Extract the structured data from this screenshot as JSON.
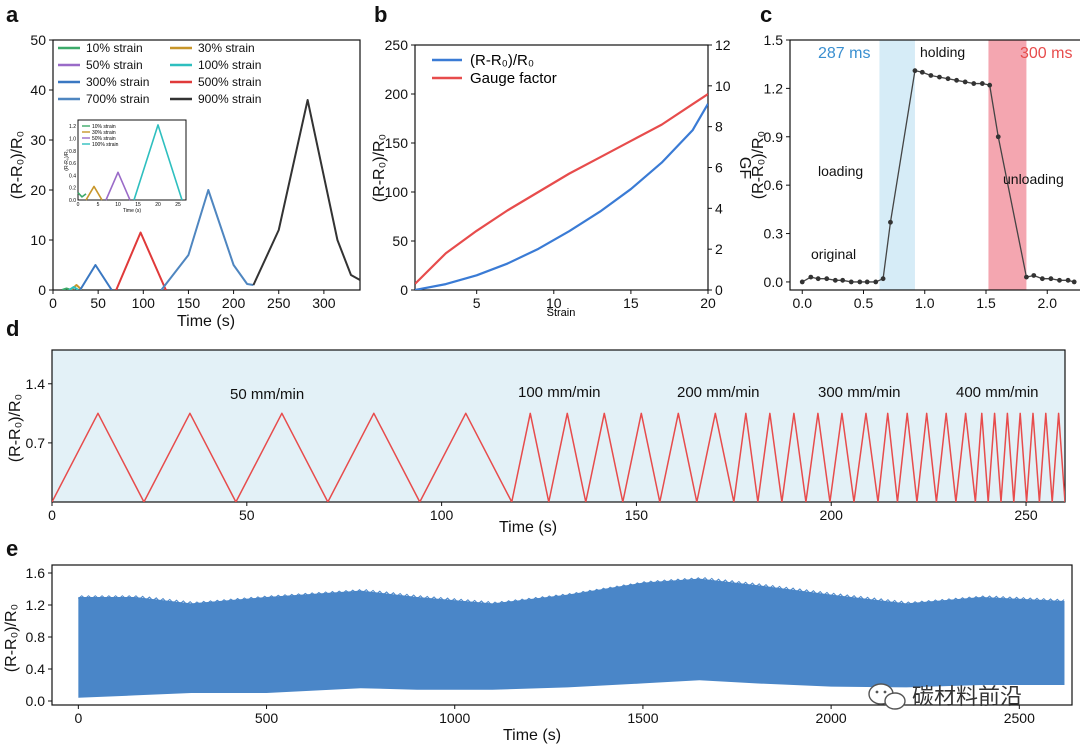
{
  "panel_labels": [
    "a",
    "b",
    "c",
    "d",
    "e"
  ],
  "watermark": "碳材料前沿",
  "colors": {
    "strain10": "#3daa6a",
    "strain30": "#c8962a",
    "strain50": "#9a6bc8",
    "strain100": "#2ebfbf",
    "strain300": "#3a78c2",
    "strain500": "#e03a3a",
    "strain700": "#4f86c0",
    "strain900": "#333333",
    "blue": "#3a7bd5",
    "red": "#e74c4c",
    "shade_blue": "#d6ecf7",
    "shade_red": "#f4a6b0",
    "shade_d": "#e3f1f7",
    "fill_e": "#4a86c8"
  },
  "chart_data": [
    {
      "id": "a",
      "type": "line",
      "xlabel": "Time (s)",
      "ylabel": "(R-R₀)/R₀",
      "xlim": [
        0,
        340
      ],
      "ylim": [
        0,
        50
      ],
      "xticks": [
        0,
        50,
        100,
        150,
        200,
        250,
        300
      ],
      "yticks": [
        0,
        10,
        20,
        30,
        40,
        50
      ],
      "legend": [
        "10% strain",
        "30% strain",
        "50% strain",
        "100% strain",
        "300% strain",
        "500% strain",
        "700% strain",
        "900% strain"
      ],
      "series": [
        {
          "name": "10% strain",
          "x": [
            10,
            15,
            20
          ],
          "y": [
            0,
            0.3,
            0
          ]
        },
        {
          "name": "30% strain",
          "x": [
            20,
            26,
            32
          ],
          "y": [
            0,
            1,
            0
          ]
        },
        {
          "name": "100% strain",
          "x": [
            18,
            23,
            28
          ],
          "y": [
            0,
            0.6,
            0
          ]
        },
        {
          "name": "300% strain",
          "x": [
            30,
            47,
            65
          ],
          "y": [
            0,
            5,
            0
          ]
        },
        {
          "name": "500% strain",
          "x": [
            70,
            97,
            125
          ],
          "y": [
            0,
            11.5,
            0
          ]
        },
        {
          "name": "700% strain",
          "x": [
            120,
            150,
            172,
            200,
            215,
            222
          ],
          "y": [
            0,
            7,
            20,
            5,
            1.2,
            1
          ]
        },
        {
          "name": "900% strain",
          "x": [
            222,
            250,
            282,
            315,
            330,
            340
          ],
          "y": [
            1,
            12,
            38,
            10,
            3,
            2
          ]
        }
      ],
      "inset": {
        "xlabel": "Time (s)",
        "ylabel": "(R-R₀)/R₀",
        "xlim": [
          0,
          27
        ],
        "ylim": [
          0,
          1.3
        ],
        "xticks": [
          0,
          5,
          10,
          15,
          20,
          25
        ],
        "yticks": [
          0.0,
          0.2,
          0.4,
          0.6,
          0.8,
          1.0,
          1.2
        ],
        "legend": [
          "10% strain",
          "30% strain",
          "50% strain",
          "100% strain"
        ],
        "series": [
          {
            "name": "10% strain",
            "x": [
              0,
              1,
              2
            ],
            "y": [
              0.12,
              0.05,
              0.1
            ]
          },
          {
            "name": "30% strain",
            "x": [
              2,
              4,
              6
            ],
            "y": [
              0,
              0.22,
              0
            ]
          },
          {
            "name": "50% strain",
            "x": [
              7,
              10,
              13
            ],
            "y": [
              0,
              0.45,
              0
            ]
          },
          {
            "name": "100% strain",
            "x": [
              14,
              20,
              26
            ],
            "y": [
              0,
              1.22,
              0
            ]
          }
        ]
      }
    },
    {
      "id": "b",
      "type": "line",
      "xlabel": "Strain",
      "ylabel": "(R-R₀)/R₀",
      "y2label": "GF",
      "xlim": [
        1,
        20
      ],
      "ylim": [
        0,
        250
      ],
      "y2lim": [
        0,
        12
      ],
      "xticks": [
        5,
        10,
        15,
        20
      ],
      "yticks": [
        0,
        50,
        100,
        150,
        200,
        250
      ],
      "y2ticks": [
        0,
        2,
        4,
        6,
        8,
        10,
        12
      ],
      "legend": [
        "(R-R₀)/R₀",
        "Gauge factor"
      ],
      "series": [
        {
          "name": "(R-R₀)/R₀",
          "x": [
            1,
            3,
            5,
            7,
            9,
            11,
            13,
            15,
            17,
            19,
            20
          ],
          "y": [
            0,
            6,
            15,
            27,
            42,
            60,
            80,
            103,
            130,
            163,
            190
          ]
        },
        {
          "name": "Gauge factor",
          "x": [
            1,
            3,
            5,
            7,
            9,
            11,
            13,
            15,
            17,
            19,
            20
          ],
          "y": [
            0.3,
            1.8,
            2.9,
            3.9,
            4.8,
            5.7,
            6.5,
            7.3,
            8.1,
            9.1,
            9.6
          ]
        }
      ]
    },
    {
      "id": "c",
      "type": "line",
      "xlabel": "",
      "ylabel": "(R-R₀)/R₀",
      "xlim": [
        -0.1,
        2.3
      ],
      "ylim": [
        -0.05,
        1.5
      ],
      "xticks": [
        0.0,
        0.5,
        1.0,
        1.5,
        2.0
      ],
      "yticks": [
        0.0,
        0.3,
        0.6,
        0.9,
        1.2,
        1.5
      ],
      "shaded": [
        {
          "label": "287 ms",
          "range": [
            0.63,
            0.92
          ],
          "color": "blue"
        },
        {
          "label": "300 ms",
          "range": [
            1.52,
            1.83
          ],
          "color": "red"
        }
      ],
      "annotations": [
        "original",
        "loading",
        "holding",
        "unloading"
      ],
      "series": [
        {
          "name": "response",
          "x": [
            0.0,
            0.07,
            0.13,
            0.2,
            0.27,
            0.33,
            0.4,
            0.47,
            0.53,
            0.6,
            0.66,
            0.72,
            0.92,
            0.98,
            1.05,
            1.12,
            1.19,
            1.26,
            1.33,
            1.4,
            1.47,
            1.53,
            1.6,
            1.83,
            1.89,
            1.96,
            2.03,
            2.1,
            2.17,
            2.22
          ],
          "y": [
            0.0,
            0.03,
            0.02,
            0.02,
            0.01,
            0.01,
            0.0,
            0.0,
            0.0,
            0.0,
            0.02,
            0.37,
            1.31,
            1.3,
            1.28,
            1.27,
            1.26,
            1.25,
            1.24,
            1.23,
            1.23,
            1.22,
            0.9,
            0.03,
            0.04,
            0.02,
            0.02,
            0.01,
            0.01,
            0.0
          ]
        }
      ]
    },
    {
      "id": "d",
      "type": "line",
      "xlabel": "Time (s)",
      "ylabel": "(R-R₀)/R₀",
      "xlim": [
        0,
        260
      ],
      "ylim": [
        0,
        1.8
      ],
      "xticks": [
        0,
        50,
        100,
        150,
        200,
        250
      ],
      "yticks": [
        0.7,
        1.4
      ],
      "annotations": [
        "50 mm/min",
        "100 mm/min",
        "200 mm/min",
        "300 mm/min",
        "400 mm/min"
      ],
      "segments": [
        {
          "speed": "50 mm/min",
          "t_start": 0,
          "t_end": 118,
          "cycles": 5,
          "peak": 1.05
        },
        {
          "speed": "100 mm/min",
          "t_start": 118,
          "t_end": 175,
          "cycles": 6,
          "peak": 1.05
        },
        {
          "speed": "200 mm/min",
          "t_start": 175,
          "t_end": 212,
          "cycles": 6,
          "peak": 1.05
        },
        {
          "speed": "300 mm/min",
          "t_start": 212,
          "t_end": 237,
          "cycles": 5,
          "peak": 1.05
        },
        {
          "speed": "400 mm/min",
          "t_start": 237,
          "t_end": 260,
          "cycles": 7,
          "peak": 1.05
        }
      ]
    },
    {
      "id": "e",
      "type": "area",
      "xlabel": "Time (s)",
      "ylabel": "(R-R₀)/R₀",
      "xlim": [
        -70,
        2640
      ],
      "ylim": [
        -0.05,
        1.7
      ],
      "xticks": [
        0,
        500,
        1000,
        1500,
        2000,
        2500
      ],
      "yticks": [
        0.0,
        0.4,
        0.8,
        1.2,
        1.6
      ],
      "envelope": {
        "x": [
          0,
          150,
          300,
          500,
          750,
          900,
          1100,
          1300,
          1500,
          1650,
          1800,
          2000,
          2200,
          2400,
          2620
        ],
        "upper": [
          1.3,
          1.3,
          1.22,
          1.3,
          1.38,
          1.3,
          1.22,
          1.33,
          1.48,
          1.53,
          1.45,
          1.33,
          1.22,
          1.3,
          1.25
        ],
        "lower": [
          0.04,
          0.07,
          0.1,
          0.1,
          0.16,
          0.14,
          0.14,
          0.17,
          0.22,
          0.26,
          0.22,
          0.18,
          0.17,
          0.2,
          0.2
        ]
      }
    }
  ]
}
